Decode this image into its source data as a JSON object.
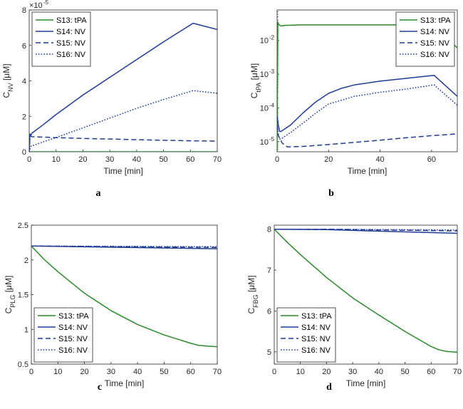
{
  "colors": {
    "tPA": "#2a8a2a",
    "NV": "#1f3c96"
  },
  "chart_data": [
    {
      "id": "a",
      "type": "line",
      "panel_label": "a",
      "xlabel": "Time [min]",
      "ylabel_main": "C",
      "ylabel_sub": "NV",
      "ylabel_unit": " [μM]",
      "xlim": [
        0,
        70
      ],
      "ylim": [
        0,
        8
      ],
      "yscale": "linear",
      "exponent_label": "×10",
      "exponent_power": "-5",
      "xticks": [
        0,
        10,
        20,
        30,
        40,
        50,
        60,
        70
      ],
      "yticks": [
        0,
        2,
        4,
        6,
        8
      ],
      "ytick_labels": [
        "0",
        "2",
        "4",
        "6",
        "8"
      ],
      "legend_position": "top-left",
      "series": [
        {
          "name": "S13: tPA",
          "style": "solid",
          "color": "tPA",
          "x": [
            0,
            70
          ],
          "y": [
            0,
            0
          ]
        },
        {
          "name": "S14: NV",
          "style": "solid",
          "color": "NV",
          "x": [
            0,
            0.3,
            0.6,
            1,
            5,
            10,
            20,
            30,
            40,
            50,
            61,
            70
          ],
          "y": [
            0,
            1.0,
            0.9,
            1.05,
            1.5,
            2.1,
            3.2,
            4.2,
            5.2,
            6.2,
            7.25,
            6.9
          ]
        },
        {
          "name": "S15: NV",
          "style": "dashed",
          "color": "NV",
          "x": [
            0,
            0.3,
            1,
            10,
            20,
            30,
            40,
            50,
            60,
            70
          ],
          "y": [
            0,
            0.9,
            0.85,
            0.8,
            0.75,
            0.72,
            0.68,
            0.65,
            0.62,
            0.6
          ]
        },
        {
          "name": "S16: NV",
          "style": "dotted",
          "color": "NV",
          "x": [
            0,
            0.5,
            5,
            10,
            20,
            30,
            40,
            50,
            61,
            70
          ],
          "y": [
            0,
            0.3,
            0.55,
            0.8,
            1.35,
            1.9,
            2.45,
            2.95,
            3.45,
            3.3
          ]
        }
      ]
    },
    {
      "id": "b",
      "type": "line",
      "panel_label": "b",
      "xlabel": "Time [min]",
      "ylabel_main": "C",
      "ylabel_sub": "tPA",
      "ylabel_unit": " [μM]",
      "xlim": [
        0,
        70
      ],
      "ylim": [
        5e-06,
        0.08
      ],
      "yscale": "log",
      "xticks": [
        0,
        20,
        40,
        60
      ],
      "yticks": [
        1e-05,
        0.0001,
        0.001,
        0.01
      ],
      "ytick_exponents": [
        "-5",
        "-4",
        "-3",
        "-2"
      ],
      "ytick_base": "10",
      "legend_position": "top-right",
      "series": [
        {
          "name": "S13: tPA",
          "style": "solid",
          "color": "tPA",
          "x": [
            0,
            0.3,
            0.6,
            1.5,
            3,
            10,
            20,
            40,
            61,
            70
          ],
          "y": [
            5e-06,
            0.035,
            0.03,
            0.027,
            0.028,
            0.029,
            0.029,
            0.029,
            0.029,
            0.006
          ]
        },
        {
          "name": "S14: NV",
          "style": "solid",
          "color": "NV",
          "x": [
            0,
            0.5,
            1,
            1.5,
            5,
            10,
            15,
            20,
            25,
            30,
            40,
            50,
            61,
            70
          ],
          "y": [
            6e-05,
            3e-05,
            2e-05,
            2e-05,
            3e-05,
            7e-05,
            0.00015,
            0.00027,
            0.00038,
            0.00048,
            0.00062,
            0.00075,
            0.00092,
            0.00022
          ]
        },
        {
          "name": "S15: NV",
          "style": "dashed",
          "color": "NV",
          "x": [
            0,
            0.5,
            2,
            4,
            10,
            20,
            30,
            40,
            50,
            60,
            70
          ],
          "y": [
            3e-05,
            1.5e-05,
            9e-06,
            7e-06,
            7.2e-06,
            8.2e-06,
            9.5e-06,
            1.1e-05,
            1.3e-05,
            1.5e-05,
            1.7e-05
          ]
        },
        {
          "name": "S16: NV",
          "style": "dotted",
          "color": "NV",
          "x": [
            0,
            0.5,
            1,
            1.5,
            5,
            10,
            15,
            20,
            30,
            40,
            50,
            61,
            70
          ],
          "y": [
            3e-05,
            1.5e-05,
            1.2e-05,
            1.2e-05,
            1.8e-05,
            3.5e-05,
            7e-05,
            0.00013,
            0.00022,
            0.00029,
            0.00036,
            0.00048,
            0.00012
          ]
        }
      ]
    },
    {
      "id": "c",
      "type": "line",
      "panel_label": "c",
      "xlabel": "Time [min]",
      "ylabel_main": "C",
      "ylabel_sub": "PLG",
      "ylabel_unit": " [μM]",
      "xlim": [
        0,
        70
      ],
      "ylim": [
        0.5,
        2.5
      ],
      "yscale": "linear",
      "xticks": [
        0,
        10,
        20,
        30,
        40,
        50,
        60,
        70
      ],
      "yticks": [
        0.5,
        1,
        1.5,
        2,
        2.5
      ],
      "ytick_labels": [
        "0.5",
        "1",
        "1.5",
        "2",
        "2.5"
      ],
      "legend_position": "bottom-left",
      "series": [
        {
          "name": "S13: tPA",
          "style": "solid",
          "color": "tPA",
          "x": [
            0,
            5,
            10,
            20,
            30,
            40,
            50,
            60,
            63,
            66,
            70
          ],
          "y": [
            2.2,
            2.0,
            1.83,
            1.52,
            1.27,
            1.07,
            0.92,
            0.8,
            0.77,
            0.76,
            0.75
          ]
        },
        {
          "name": "S14: NV",
          "style": "solid",
          "color": "NV",
          "x": [
            0,
            70
          ],
          "y": [
            2.2,
            2.16
          ]
        },
        {
          "name": "S15: NV",
          "style": "dashed",
          "color": "NV",
          "x": [
            0,
            70
          ],
          "y": [
            2.2,
            2.18
          ]
        },
        {
          "name": "S16: NV",
          "style": "dotted",
          "color": "NV",
          "x": [
            0,
            70
          ],
          "y": [
            2.2,
            2.19
          ]
        }
      ]
    },
    {
      "id": "d",
      "type": "line",
      "panel_label": "d",
      "xlabel": "Time [min]",
      "ylabel_main": "C",
      "ylabel_sub": "FBG",
      "ylabel_unit": " [μM]",
      "xlim": [
        0,
        70
      ],
      "ylim": [
        4.7,
        8.1
      ],
      "yscale": "linear",
      "xticks": [
        0,
        10,
        20,
        30,
        40,
        50,
        60,
        70
      ],
      "yticks": [
        5,
        6,
        7,
        8
      ],
      "ytick_labels": [
        "5",
        "6",
        "7",
        "8"
      ],
      "legend_position": "bottom-left",
      "series": [
        {
          "name": "S13: tPA",
          "style": "solid",
          "color": "tPA",
          "x": [
            0,
            5,
            10,
            20,
            30,
            40,
            50,
            60,
            63,
            66,
            70
          ],
          "y": [
            8.0,
            7.68,
            7.38,
            6.82,
            6.32,
            5.9,
            5.5,
            5.13,
            5.05,
            5.01,
            4.99
          ]
        },
        {
          "name": "S14: NV",
          "style": "solid",
          "color": "NV",
          "x": [
            0,
            20,
            70
          ],
          "y": [
            8.0,
            7.99,
            7.9
          ]
        },
        {
          "name": "S15: NV",
          "style": "dashed",
          "color": "NV",
          "x": [
            0,
            20,
            70
          ],
          "y": [
            8.0,
            8.0,
            7.96
          ]
        },
        {
          "name": "S16: NV",
          "style": "dotted",
          "color": "NV",
          "x": [
            0,
            20,
            70
          ],
          "y": [
            8.0,
            8.0,
            7.98
          ]
        }
      ]
    }
  ]
}
